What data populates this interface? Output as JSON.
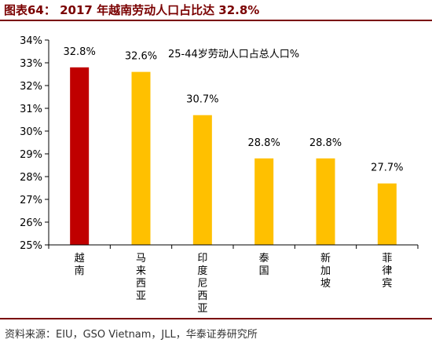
{
  "header": {
    "figure_title": "图表64： 2017 年越南劳动人口占比达 32.8%"
  },
  "chart_data": {
    "type": "bar",
    "annotation": "25-44岁劳动人口占总人口%",
    "categories": [
      "越南",
      "马来西亚",
      "印度尼西亚",
      "泰国",
      "新加坡",
      "菲律宾"
    ],
    "values": [
      32.8,
      32.6,
      30.7,
      28.8,
      28.8,
      27.7
    ],
    "value_labels": [
      "32.8%",
      "32.6%",
      "30.7%",
      "28.8%",
      "28.8%",
      "27.7%"
    ],
    "bar_colors": [
      "#c00000",
      "#ffc000",
      "#ffc000",
      "#ffc000",
      "#ffc000",
      "#ffc000"
    ],
    "ylim": [
      25,
      34
    ],
    "yticks": [
      "25%",
      "26%",
      "27%",
      "28%",
      "29%",
      "30%",
      "31%",
      "32%",
      "33%",
      "34%"
    ],
    "grid": false,
    "legend": "none"
  },
  "footer": {
    "source": "资料来源：EIU，GSO Vietnam，JLL，华泰证券研究所"
  }
}
